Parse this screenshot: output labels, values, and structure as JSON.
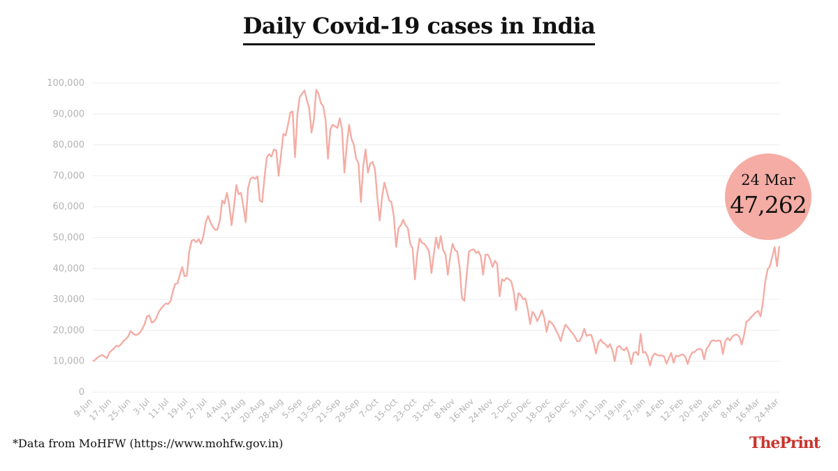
{
  "title": "Daily Covid-19 cases in India",
  "callout": {
    "date": "24 Mar",
    "value": "47,262"
  },
  "source": "*Data from MoHFW (https://www.mohfw.gov.in)",
  "brand": {
    "the": "The",
    "print": "Print"
  },
  "colors": {
    "line": "#f4aca4",
    "callout": "#f5aca4",
    "brand": "#c8352e",
    "grid": "#ececec",
    "tick": "#b3b3b3"
  },
  "chart_data": {
    "type": "line",
    "title": "Daily Covid-19 cases in India",
    "xlabel": "",
    "ylabel": "",
    "ylim": [
      0,
      100000
    ],
    "yticks": [
      0,
      10000,
      20000,
      30000,
      40000,
      50000,
      60000,
      70000,
      80000,
      90000,
      100000
    ],
    "ytick_labels": [
      "0",
      "10,000",
      "20,000",
      "30,000",
      "40,000",
      "50,000",
      "60,000",
      "70,000",
      "80,000",
      "90,000",
      "100,000"
    ],
    "x_start": "9-Jun",
    "x_end": "24-Mar",
    "xtick_labels": [
      "9-Jun",
      "17-Jun",
      "25-Jun",
      "3-Jul",
      "11-Jul",
      "19-Jul",
      "27-Jul",
      "4-Aug",
      "12-Aug",
      "20-Aug",
      "28-Aug",
      "5-Sep",
      "13-Sep",
      "21-Sep",
      "29-Sep",
      "7-Oct",
      "15-Oct",
      "23-Oct",
      "31-Oct",
      "8-Nov",
      "16-Nov",
      "24-Nov",
      "2-Dec",
      "10-Dec",
      "18-Dec",
      "26-Dec",
      "3-Jan",
      "11-Jan",
      "19-Jan",
      "27-Jan",
      "4-Feb",
      "12-Feb",
      "20-Feb",
      "28-Feb",
      "8-Mar",
      "16-Mar",
      "24-Mar"
    ],
    "grid": true,
    "series": [
      {
        "values": [
          10000,
          10500,
          11200,
          11700,
          12000,
          11500,
          11000,
          12800,
          13500,
          14200,
          15000,
          14800,
          15500,
          16500,
          17200,
          18000,
          19800,
          19000,
          18500,
          18600,
          19200,
          20500,
          22000,
          24500,
          24800,
          22500,
          22800,
          24000,
          26000,
          27000,
          28000,
          28700,
          28500,
          29400,
          32500,
          35000,
          35200,
          38000,
          40500,
          37500,
          37800,
          45500,
          49000,
          49300,
          48500,
          49500,
          48000,
          50500,
          55000,
          57000,
          55000,
          53500,
          52500,
          52600,
          55500,
          62000,
          61000,
          64500,
          60500,
          54000,
          60000,
          67000,
          64000,
          64500,
          60000,
          55000,
          66000,
          69000,
          69500,
          69000,
          69800,
          62000,
          61500,
          69500,
          76000,
          77000,
          76200,
          78500,
          78200,
          70000,
          76500,
          83500,
          83000,
          86500,
          90500,
          90800,
          76000,
          90000,
          95500,
          96500,
          97600,
          94500,
          92000,
          84000,
          88000,
          97800,
          96500,
          93500,
          92500,
          88000,
          75500,
          85000,
          86500,
          86000,
          85500,
          88600,
          85000,
          71000,
          80000,
          86500,
          82000,
          80000,
          75500,
          74000,
          61500,
          73000,
          78500,
          71000,
          74000,
          74500,
          72000,
          63000,
          55500,
          63000,
          67800,
          65000,
          62000,
          61500,
          57000,
          47000,
          53000,
          54000,
          55800,
          54000,
          53000,
          48000,
          46500,
          36500,
          45000,
          49700,
          48300,
          48000,
          46900,
          45500,
          38500,
          44500,
          50000,
          46500,
          50500,
          46000,
          44500,
          38000,
          44000,
          48000,
          46000,
          45500,
          40500,
          30500,
          29500,
          38000,
          45500,
          46000,
          46200,
          45000,
          45500,
          44000,
          38000,
          44500,
          44500,
          43000,
          40500,
          42500,
          41500,
          31000,
          36500,
          36000,
          37000,
          36500,
          35800,
          32500,
          26500,
          32000,
          31500,
          30000,
          30300,
          26800,
          22000,
          26000,
          25000,
          23000,
          24500,
          26500,
          24000,
          19500,
          23000,
          22500,
          21500,
          20000,
          18500,
          16500,
          19500,
          21800,
          21000,
          20000,
          19000,
          18000,
          16500,
          16500,
          18000,
          20500,
          18200,
          18500,
          18500,
          16000,
          12500,
          16000,
          17000,
          16000,
          15500,
          14500,
          15500,
          13500,
          10000,
          14500,
          15000,
          14000,
          13500,
          14500,
          12500,
          9100,
          12700,
          13000,
          12000,
          18800,
          12800,
          13000,
          11500,
          8600,
          11500,
          12500,
          12000,
          11800,
          11900,
          11500,
          9200,
          11000,
          12700,
          9500,
          11800,
          11600,
          12000,
          12200,
          11500,
          9100,
          11500,
          12900,
          13000,
          13800,
          14000,
          13800,
          10600,
          14000,
          15000,
          16500,
          16800,
          16500,
          16700,
          16600,
          12300,
          16500,
          17500,
          16700,
          18000,
          18500,
          18600,
          17900,
          15400,
          18500,
          22800,
          23300,
          24300,
          25000,
          25800,
          26300,
          24500,
          28900,
          35800,
          39700,
          40800,
          43800,
          46900,
          40700,
          47262
        ]
      }
    ]
  }
}
